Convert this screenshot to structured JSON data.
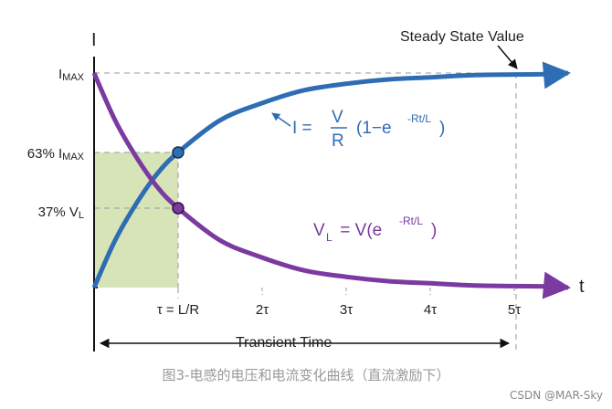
{
  "chart_data": {
    "type": "line",
    "y_axis_label": "I",
    "x_axis_label": "t",
    "annotation_steady": "Steady State Value",
    "y_ticks": [
      {
        "main": "I",
        "sub": "MAX",
        "value": 1.0
      },
      {
        "main": "63% I",
        "sub": "MAX",
        "value": 0.63
      },
      {
        "main": "37% V",
        "sub": "L",
        "value": 0.37
      }
    ],
    "x_ticks": [
      {
        "label": "τ = L/R",
        "value": 1
      },
      {
        "label": "2τ",
        "value": 2
      },
      {
        "label": "3τ",
        "value": 3
      },
      {
        "label": "4τ",
        "value": 4
      },
      {
        "label": "5τ",
        "value": 5
      }
    ],
    "transient_label": "Transient Time",
    "xlim": [
      0,
      5.5
    ],
    "ylim": [
      0,
      1.0
    ],
    "series": [
      {
        "name": "I",
        "color": "#2e6db4",
        "formula": {
          "lhs": "I = ",
          "num": "V",
          "den": "R",
          "rest_open": "(1−e",
          "sup": "-Rt/L",
          "rest_close": ")"
        },
        "x": [
          0,
          0.25,
          0.5,
          0.75,
          1,
          1.5,
          2,
          2.5,
          3,
          3.5,
          4,
          4.5,
          5,
          5.5
        ],
        "values": [
          0,
          0.22,
          0.39,
          0.53,
          0.63,
          0.78,
          0.86,
          0.92,
          0.95,
          0.97,
          0.98,
          0.99,
          0.993,
          0.995
        ]
      },
      {
        "name": "V_L",
        "color": "#7a3aa0",
        "formula": {
          "lhs_main": "V",
          "lhs_sub": "L",
          "rhs_open": " = V(e",
          "sup": "-Rt/L",
          "rhs_close": ")"
        },
        "x": [
          0,
          0.25,
          0.5,
          0.75,
          1,
          1.5,
          2,
          2.5,
          3,
          3.5,
          4,
          4.5,
          5,
          5.5
        ],
        "values": [
          1.0,
          0.78,
          0.61,
          0.47,
          0.37,
          0.22,
          0.14,
          0.08,
          0.05,
          0.03,
          0.02,
          0.01,
          0.007,
          0.005
        ]
      }
    ],
    "highlight_region": {
      "x": [
        0,
        1
      ],
      "y": [
        0,
        0.63
      ],
      "color": "#d6e4b8"
    }
  },
  "caption": "图3-电感的电压和电流变化曲线（直流激励下）",
  "watermark": "CSDN @MAR-Sky"
}
